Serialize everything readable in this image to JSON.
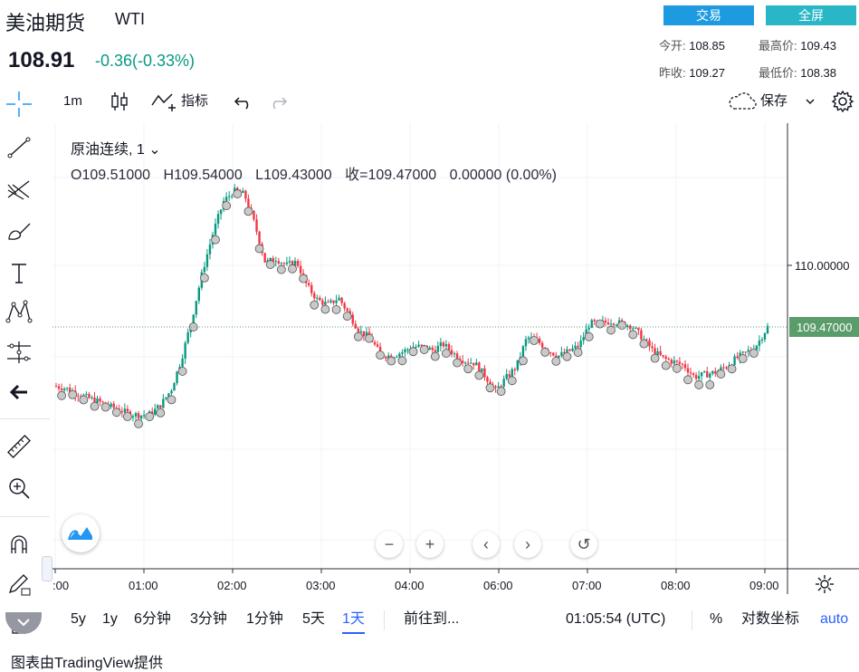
{
  "header": {
    "title": "美油期货",
    "symbol": "WTI",
    "price": "108.91",
    "change": "-0.36(-0.33%)",
    "trade_label": "交易",
    "fullscreen_label": "全屏"
  },
  "stats": {
    "open_label": "今开:",
    "open_value": "108.85",
    "high_label": "最高价:",
    "high_value": "109.43",
    "prev_label": "昨收:",
    "prev_value": "109.27",
    "low_label": "最低价:",
    "low_value": "108.38"
  },
  "toolbar": {
    "interval": "1m",
    "indicators_label": "指标",
    "save_label": "保存"
  },
  "legend": {
    "symbol_line": "原油连续, 1",
    "open": "O109.51000",
    "high": "H109.54000",
    "low": "L109.43000",
    "close": "收=109.47000",
    "change": "0.00000 (0.00%)"
  },
  "chart_data": {
    "type": "candlestick",
    "x_ticks": [
      ":00",
      "01:00",
      "02:00",
      "03:00",
      "04:00",
      "06:00",
      "07:00",
      "08:00",
      "09:00"
    ],
    "y_ticks": [
      "110.00000"
    ],
    "last_price_label": "109.47000",
    "colors": {
      "up": "#089981",
      "down": "#f23645",
      "marker": "#c9c9c9",
      "last_price": "#5b9c6b"
    },
    "close_profile": [
      108.96,
      108.94,
      108.9,
      108.86,
      108.83,
      108.79,
      108.76,
      108.72,
      108.71,
      108.72,
      108.8,
      108.93,
      109.2,
      109.55,
      109.95,
      110.28,
      110.55,
      110.64,
      110.61,
      110.35,
      110.02,
      110.06,
      110.0,
      110.03,
      109.82,
      109.7,
      109.66,
      109.72,
      109.58,
      109.43,
      109.38,
      109.23,
      109.22,
      109.25,
      109.3,
      109.3,
      109.27,
      109.32,
      109.24,
      109.18,
      109.16,
      109.05,
      108.92,
      109.03,
      109.13,
      109.38,
      109.35,
      109.27,
      109.22,
      109.26,
      109.31,
      109.5,
      109.5,
      109.52,
      109.5,
      109.48,
      109.38,
      109.27,
      109.2,
      109.17,
      109.14,
      109.04,
      109.06,
      109.08,
      109.13,
      109.2,
      109.25,
      109.32,
      109.47
    ]
  },
  "bottom": {
    "ranges": [
      "5y",
      "1y",
      "6分钟",
      "3分钟",
      "1分钟",
      "5天",
      "1天"
    ],
    "goto_label": "前往到...",
    "time_label": "01:05:54 (UTC)",
    "percent_label": "%",
    "log_label": "对数坐标",
    "auto_label": "auto"
  },
  "footer": "图表由TradingView提供"
}
